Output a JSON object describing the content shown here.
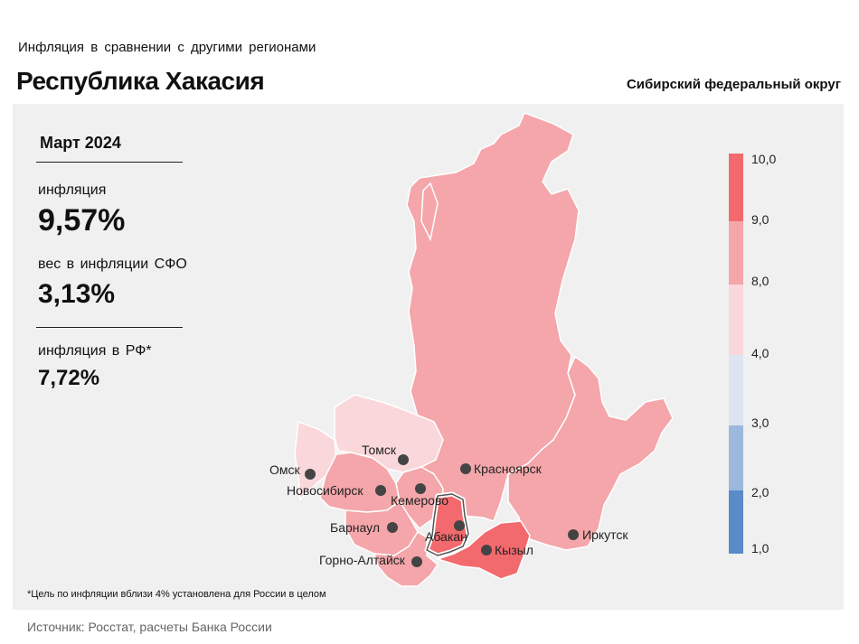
{
  "header": {
    "subtitle": "Инфляция  в сравнении  с другими  регионами",
    "title": "Республика Хакасия",
    "district": "Сибирский федеральный округ"
  },
  "stats": {
    "period": "Март 2024",
    "inflation_label": "инфляция",
    "inflation_value": "9,57%",
    "weight_label": "вес в инфляции  СФО",
    "weight_value": "3,13%",
    "rf_label": "инфляция  в РФ*",
    "rf_value": "7,72%"
  },
  "map": {
    "regions": [
      {
        "name": "Красноярский край",
        "inflation_bin": "8,0–9,0",
        "color": "#f4a6aa"
      },
      {
        "name": "Иркутская область",
        "inflation_bin": "8,0–9,0",
        "color": "#f4a6aa"
      },
      {
        "name": "Новосибирская область",
        "inflation_bin": "8,0–9,0",
        "color": "#f4a6aa"
      },
      {
        "name": "Кемеровская область",
        "inflation_bin": "8,0–9,0",
        "color": "#f4a6aa"
      },
      {
        "name": "Алтайский край",
        "inflation_bin": "8,0–9,0",
        "color": "#f4a6aa"
      },
      {
        "name": "Республика Алтай",
        "inflation_bin": "8,0–9,0",
        "color": "#f4a6aa"
      },
      {
        "name": "Омская область",
        "inflation_bin": "4,0–8,0",
        "color": "#f9d7db"
      },
      {
        "name": "Томская область",
        "inflation_bin": "4,0–8,0",
        "color": "#f9d7db"
      },
      {
        "name": "Республика Хакасия",
        "inflation_bin": "9,0–10,0",
        "color": "#f26a6e"
      },
      {
        "name": "Республика Тыва",
        "inflation_bin": "9,0–10,0",
        "color": "#f26a6e"
      }
    ],
    "cities": [
      "Омск",
      "Томск",
      "Новосибирск",
      "Кемерово",
      "Красноярск",
      "Барнаул",
      "Абакан",
      "Горно-Алтайск",
      "Кызыл",
      "Иркутск"
    ]
  },
  "legend": {
    "labels": [
      "10,0",
      "9,0",
      "8,0",
      "4,0",
      "3,0",
      "2,0",
      "1,0"
    ],
    "bins": [
      {
        "from": 9.0,
        "to": 10.0,
        "color": "#f26a6e"
      },
      {
        "from": 8.0,
        "to": 9.0,
        "color": "#f4a6aa"
      },
      {
        "from": 4.0,
        "to": 8.0,
        "color": "#f9d7db"
      },
      {
        "from": 3.0,
        "to": 4.0,
        "color": "#dde4f2"
      },
      {
        "from": 2.0,
        "to": 3.0,
        "color": "#9cb8dd"
      },
      {
        "from": 1.0,
        "to": 2.0,
        "color": "#5a8bc8"
      }
    ]
  },
  "footnote": "*Цель по инфляции вблизи 4% установлена для России в целом",
  "source": "Источник: Росстат, расчеты Банка России"
}
